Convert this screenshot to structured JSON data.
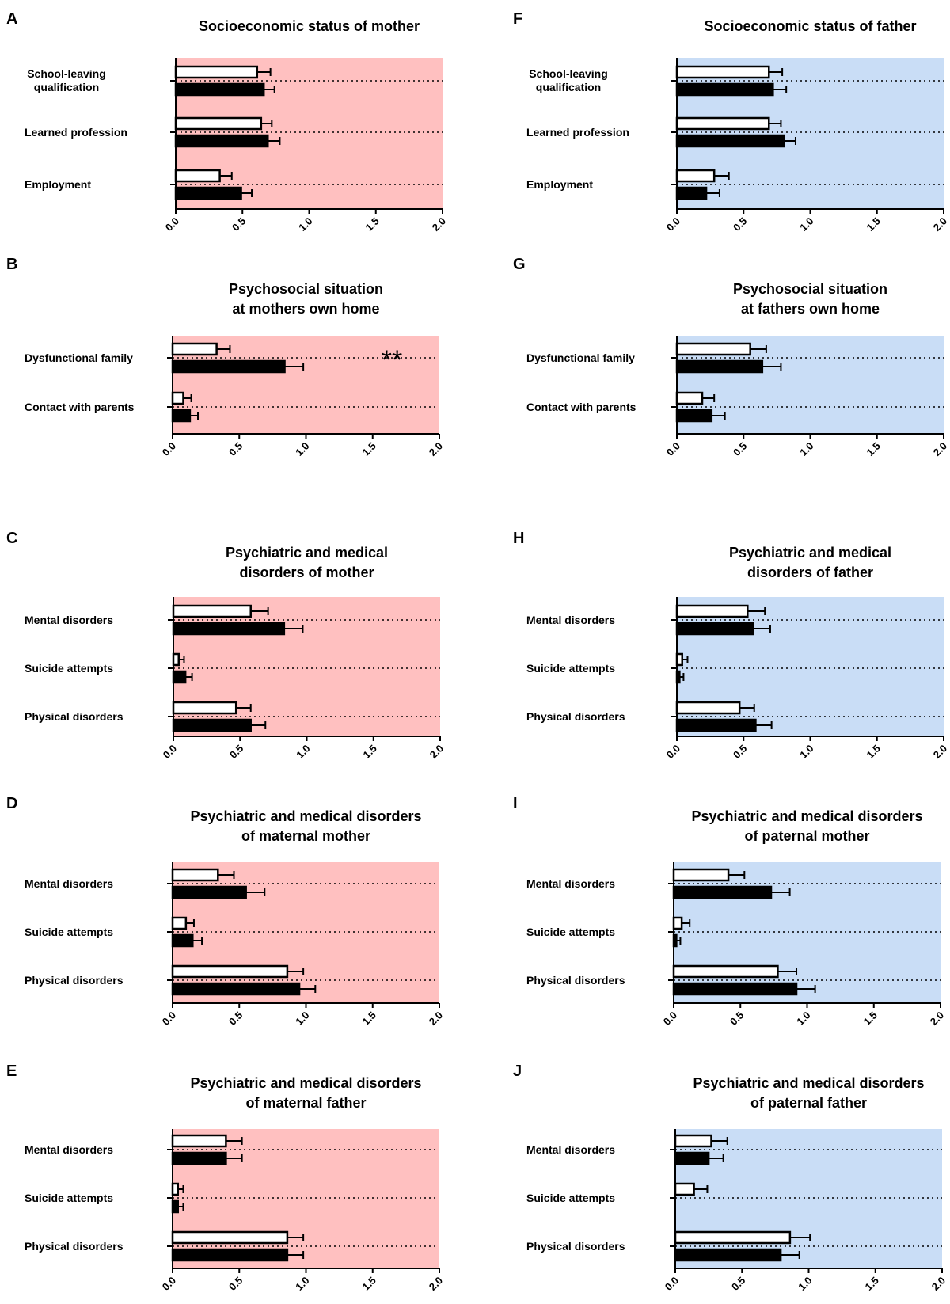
{
  "colors": {
    "mother_bg": "#ffc0c0",
    "father_bg": "#c9ddf6",
    "bar_open": "#ffffff",
    "bar_filled": "#000000"
  },
  "chart_data": [
    {
      "panel": "A",
      "type": "bar",
      "orientation": "horizontal",
      "title": [
        "Socioeconomic status of mother"
      ],
      "categories": [
        [
          "School-leaving",
          "qualification"
        ],
        [
          "Learned profession"
        ],
        [
          "Employment"
        ]
      ],
      "series": [
        {
          "fill": "open",
          "values": [
            0.61,
            0.64,
            0.33
          ],
          "errors": [
            0.1,
            0.08,
            0.09
          ]
        },
        {
          "fill": "filled",
          "values": [
            0.66,
            0.69,
            0.49
          ],
          "errors": [
            0.08,
            0.09,
            0.08
          ]
        }
      ],
      "xlim": [
        0,
        2.0
      ],
      "xticks": [
        "0.0",
        "0.5",
        "1.0",
        "1.5",
        "2.0"
      ],
      "background": "mother_bg",
      "annotation": ""
    },
    {
      "panel": "B",
      "type": "bar",
      "orientation": "horizontal",
      "title": [
        "Psychosocial situation",
        "at mothers own home"
      ],
      "categories": [
        [
          "Dysfunctional family"
        ],
        [
          "Contact with parents"
        ]
      ],
      "series": [
        {
          "fill": "open",
          "values": [
            0.33,
            0.08
          ],
          "errors": [
            0.1,
            0.06
          ]
        },
        {
          "fill": "filled",
          "values": [
            0.84,
            0.13
          ],
          "errors": [
            0.14,
            0.06
          ]
        }
      ],
      "xlim": [
        0,
        2.0
      ],
      "xticks": [
        "0.0",
        "0.5",
        "1.0",
        "1.5",
        "2.0"
      ],
      "background": "mother_bg",
      "annotation": "**"
    },
    {
      "panel": "C",
      "type": "bar",
      "orientation": "horizontal",
      "title": [
        "Psychiatric and medical",
        "disorders of mother"
      ],
      "categories": [
        [
          "Mental disorders"
        ],
        [
          "Suicide attempts"
        ],
        [
          "Physical disorders"
        ]
      ],
      "series": [
        {
          "fill": "open",
          "values": [
            0.58,
            0.04,
            0.47
          ],
          "errors": [
            0.13,
            0.04,
            0.11
          ]
        },
        {
          "fill": "filled",
          "values": [
            0.83,
            0.09,
            0.58
          ],
          "errors": [
            0.14,
            0.05,
            0.11
          ]
        }
      ],
      "xlim": [
        0,
        2.0
      ],
      "xticks": [
        "0.0",
        "0.5",
        "1.0",
        "1.5",
        "2.0"
      ],
      "background": "mother_bg",
      "annotation": ""
    },
    {
      "panel": "D",
      "type": "bar",
      "orientation": "horizontal",
      "title": [
        "Psychiatric and medical disorders",
        "of maternal mother"
      ],
      "categories": [
        [
          "Mental disorders"
        ],
        [
          "Suicide attempts"
        ],
        [
          "Physical disorders"
        ]
      ],
      "series": [
        {
          "fill": "open",
          "values": [
            0.34,
            0.1,
            0.86
          ],
          "errors": [
            0.12,
            0.06,
            0.12
          ]
        },
        {
          "fill": "filled",
          "values": [
            0.55,
            0.15,
            0.95
          ],
          "errors": [
            0.14,
            0.07,
            0.12
          ]
        }
      ],
      "xlim": [
        0,
        2.0
      ],
      "xticks": [
        "0.0",
        "0.5",
        "1.0",
        "1.5",
        "2.0"
      ],
      "background": "mother_bg",
      "annotation": ""
    },
    {
      "panel": "E",
      "type": "bar",
      "orientation": "horizontal",
      "title": [
        "Psychiatric and medical disorders",
        "of maternal father"
      ],
      "categories": [
        [
          "Mental disorders"
        ],
        [
          "Suicide attempts"
        ],
        [
          "Physical disorders"
        ]
      ],
      "series": [
        {
          "fill": "open",
          "values": [
            0.4,
            0.04,
            0.86
          ],
          "errors": [
            0.12,
            0.04,
            0.12
          ]
        },
        {
          "fill": "filled",
          "values": [
            0.4,
            0.04,
            0.86
          ],
          "errors": [
            0.12,
            0.04,
            0.12
          ]
        }
      ],
      "xlim": [
        0,
        2.0
      ],
      "xticks": [
        "0.0",
        "0.5",
        "1.0",
        "1.5",
        "2.0"
      ],
      "background": "mother_bg",
      "annotation": ""
    },
    {
      "panel": "F",
      "type": "bar",
      "orientation": "horizontal",
      "title": [
        "Socioeconomic status of father"
      ],
      "categories": [
        [
          "School-leaving",
          "qualification"
        ],
        [
          "Learned profession"
        ],
        [
          "Employment"
        ]
      ],
      "series": [
        {
          "fill": "open",
          "values": [
            0.69,
            0.69,
            0.28
          ],
          "errors": [
            0.1,
            0.09,
            0.11
          ]
        },
        {
          "fill": "filled",
          "values": [
            0.72,
            0.8,
            0.22
          ],
          "errors": [
            0.1,
            0.09,
            0.1
          ]
        }
      ],
      "xlim": [
        0,
        2.0
      ],
      "xticks": [
        "0.0",
        "0.5",
        "1.0",
        "1.5",
        "2.0"
      ],
      "background": "father_bg",
      "annotation": ""
    },
    {
      "panel": "G",
      "type": "bar",
      "orientation": "horizontal",
      "title": [
        "Psychosocial situation",
        "at fathers own home"
      ],
      "categories": [
        [
          "Dysfunctional family"
        ],
        [
          "Contact with parents"
        ]
      ],
      "series": [
        {
          "fill": "open",
          "values": [
            0.55,
            0.19
          ],
          "errors": [
            0.12,
            0.09
          ]
        },
        {
          "fill": "filled",
          "values": [
            0.64,
            0.26
          ],
          "errors": [
            0.14,
            0.1
          ]
        }
      ],
      "xlim": [
        0,
        2.0
      ],
      "xticks": [
        "0.0",
        "0.5",
        "1.0",
        "1.5",
        "2.0"
      ],
      "background": "father_bg",
      "annotation": ""
    },
    {
      "panel": "H",
      "type": "bar",
      "orientation": "horizontal",
      "title": [
        "Psychiatric and medical",
        "disorders of father"
      ],
      "categories": [
        [
          "Mental disorders"
        ],
        [
          "Suicide attempts"
        ],
        [
          "Physical disorders"
        ]
      ],
      "series": [
        {
          "fill": "open",
          "values": [
            0.53,
            0.04,
            0.47
          ],
          "errors": [
            0.13,
            0.04,
            0.11
          ]
        },
        {
          "fill": "filled",
          "values": [
            0.57,
            0.02,
            0.59
          ],
          "errors": [
            0.13,
            0.03,
            0.12
          ]
        }
      ],
      "xlim": [
        0,
        2.0
      ],
      "xticks": [
        "0.0",
        "0.5",
        "1.0",
        "1.5",
        "2.0"
      ],
      "background": "father_bg",
      "annotation": ""
    },
    {
      "panel": "I",
      "type": "bar",
      "orientation": "horizontal",
      "title": [
        "Psychiatric and medical disorders",
        "of paternal mother"
      ],
      "categories": [
        [
          "Mental disorders"
        ],
        [
          "Suicide attempts"
        ],
        [
          "Physical disorders"
        ]
      ],
      "series": [
        {
          "fill": "open",
          "values": [
            0.41,
            0.06,
            0.78
          ],
          "errors": [
            0.12,
            0.06,
            0.14
          ]
        },
        {
          "fill": "filled",
          "values": [
            0.73,
            0.02,
            0.92
          ],
          "errors": [
            0.14,
            0.03,
            0.14
          ]
        }
      ],
      "xlim": [
        0,
        2.0
      ],
      "xticks": [
        "0.0",
        "0.5",
        "1.0",
        "1.5",
        "2.0"
      ],
      "background": "father_bg",
      "annotation": ""
    },
    {
      "panel": "J",
      "type": "bar",
      "orientation": "horizontal",
      "title": [
        "Psychiatric and medical disorders",
        "of paternal father"
      ],
      "categories": [
        [
          "Mental disorders"
        ],
        [
          "Suicide attempts"
        ],
        [
          "Physical disorders"
        ]
      ],
      "series": [
        {
          "fill": "open",
          "values": [
            0.27,
            0.14,
            0.86
          ],
          "errors": [
            0.12,
            0.1,
            0.15
          ]
        },
        {
          "fill": "filled",
          "values": [
            0.25,
            0.0,
            0.79
          ],
          "errors": [
            0.11,
            0.0,
            0.14
          ]
        }
      ],
      "xlim": [
        0,
        2.0
      ],
      "xticks": [
        "0.0",
        "0.5",
        "1.0",
        "1.5",
        "2.0"
      ],
      "background": "father_bg",
      "annotation": ""
    }
  ]
}
